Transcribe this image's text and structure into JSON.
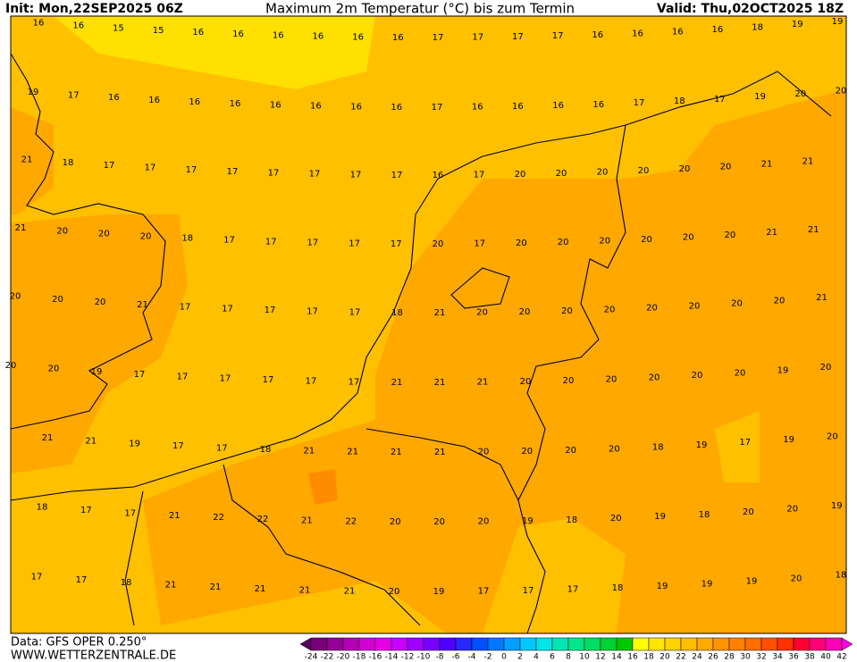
{
  "header": {
    "init": "Init: Mon,22SEP2025 06Z",
    "title": "Maximum 2m Temperatur (°C) bis zum Termin",
    "valid": "Valid: Thu,02OCT2025 18Z"
  },
  "map": {
    "rows": [
      [
        16,
        16,
        15,
        15,
        16,
        16,
        16,
        16,
        16,
        16,
        17,
        17,
        17,
        17,
        16,
        16,
        16,
        16,
        18,
        19,
        19
      ],
      [
        19,
        17,
        16,
        16,
        16,
        16,
        16,
        16,
        16,
        16,
        17,
        16,
        16,
        16,
        16,
        17,
        18,
        17,
        19,
        20,
        20
      ],
      [
        21,
        18,
        17,
        17,
        17,
        17,
        17,
        17,
        17,
        17,
        16,
        17,
        20,
        20,
        20,
        20,
        20,
        20,
        21,
        21
      ],
      [
        21,
        20,
        20,
        20,
        18,
        17,
        17,
        17,
        17,
        17,
        20,
        17,
        20,
        20,
        20,
        20,
        20,
        20,
        21,
        21
      ],
      [
        20,
        20,
        20,
        21,
        17,
        17,
        17,
        17,
        17,
        18,
        21,
        20,
        20,
        20,
        20,
        20,
        20,
        20,
        20,
        21
      ],
      [
        20,
        20,
        19,
        17,
        17,
        17,
        17,
        17,
        17,
        21,
        21,
        21,
        20,
        20,
        20,
        20,
        20,
        20,
        19,
        20
      ],
      [
        21,
        21,
        19,
        17,
        17,
        18,
        21,
        21,
        21,
        21,
        20,
        20,
        20,
        20,
        18,
        19,
        17,
        19,
        20
      ],
      [
        18,
        17,
        17,
        21,
        22,
        22,
        21,
        22,
        20,
        20,
        20,
        19,
        18,
        20,
        19,
        18,
        20,
        20,
        19
      ],
      [
        17,
        17,
        18,
        21,
        21,
        21,
        21,
        21,
        20,
        19,
        17,
        17,
        17,
        18,
        19,
        19,
        19,
        20,
        18
      ]
    ]
  },
  "footer": {
    "data": "Data: GFS OPER 0.250°",
    "site": "WWW.WETTERZENTRALE.DE"
  },
  "colorbar": {
    "labels": [
      -24,
      -22,
      -20,
      -18,
      -16,
      -14,
      -12,
      -10,
      -8,
      -6,
      -4,
      -2,
      0,
      2,
      4,
      6,
      8,
      10,
      12,
      14,
      16,
      18,
      20,
      22,
      24,
      26,
      28,
      30,
      32,
      34,
      36,
      38,
      40,
      42
    ],
    "colors": [
      "#5a005a",
      "#780078",
      "#960096",
      "#b400b4",
      "#d200d2",
      "#e600e6",
      "#c800ff",
      "#a000ff",
      "#7800ff",
      "#5000ff",
      "#2828ff",
      "#0050ff",
      "#0078ff",
      "#00a0ff",
      "#00c8ff",
      "#00e6e6",
      "#00e6b4",
      "#00e68c",
      "#00dc64",
      "#00d232",
      "#00c800",
      "#ffff00",
      "#ffe600",
      "#ffd200",
      "#ffbe00",
      "#ffaa00",
      "#ff9600",
      "#ff8200",
      "#ff6e00",
      "#ff5000",
      "#ff3200",
      "#ff0032",
      "#ff0078",
      "#ff00b4",
      "#ff00e6"
    ]
  }
}
